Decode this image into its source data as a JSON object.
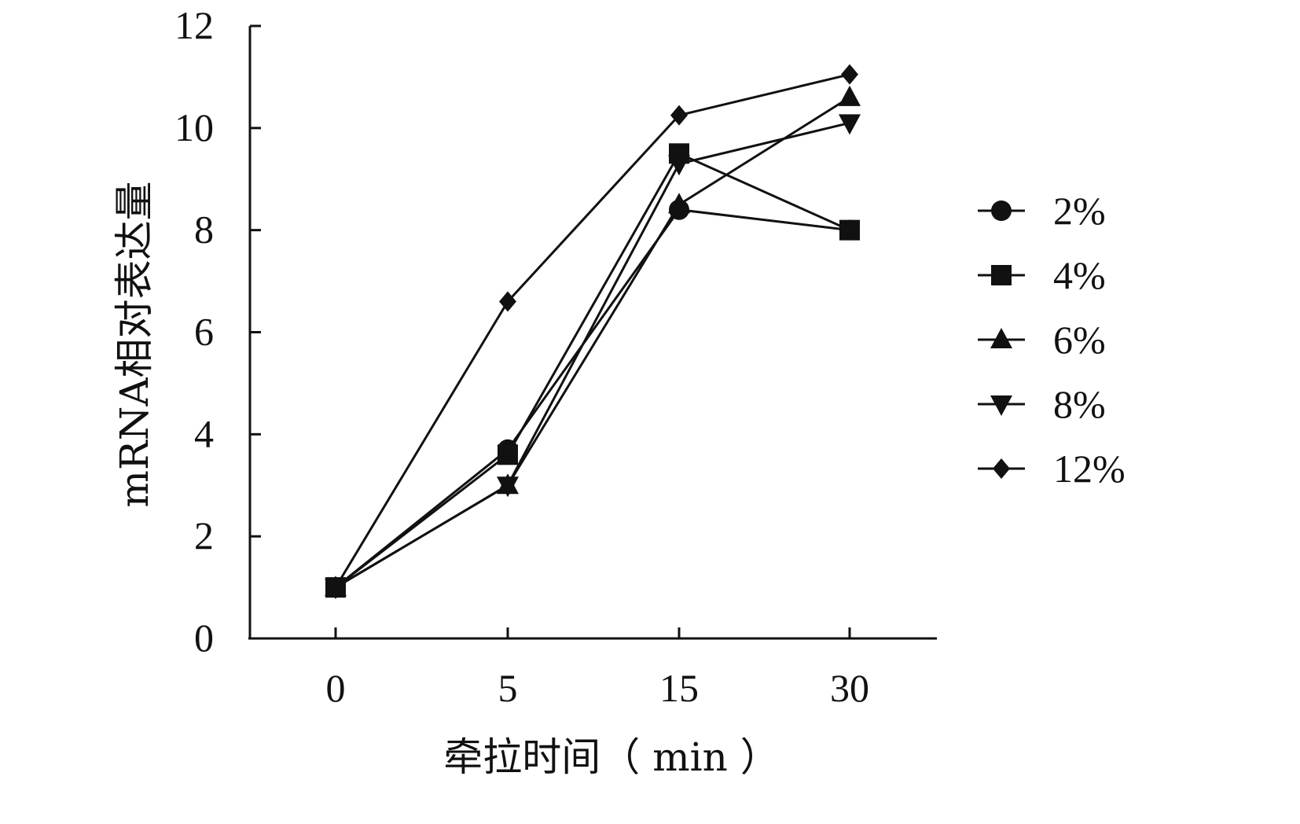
{
  "chart_data": {
    "type": "line",
    "x": [
      "0",
      "5",
      "15",
      "30"
    ],
    "xlabel": "牵拉时间（ min ）",
    "ylabel": "mRNA相对表达量",
    "ylim": [
      0,
      12
    ],
    "yticks": [
      "0",
      "2",
      "4",
      "6",
      "8",
      "10",
      "12"
    ],
    "grid": false,
    "legend_position": "right",
    "series": [
      {
        "name": "2%",
        "marker": "circle",
        "values": [
          1,
          3.7,
          8.4,
          8.0
        ]
      },
      {
        "name": "4%",
        "marker": "square",
        "values": [
          1,
          3.6,
          9.5,
          8.0
        ]
      },
      {
        "name": "6%",
        "marker": "triangle-up",
        "values": [
          1,
          3.0,
          8.5,
          10.6
        ]
      },
      {
        "name": "8%",
        "marker": "triangle-down",
        "values": [
          1,
          3.0,
          9.3,
          10.1
        ]
      },
      {
        "name": "12%",
        "marker": "diamond",
        "values": [
          1,
          6.6,
          10.25,
          11.05
        ]
      }
    ],
    "color": "#111111"
  }
}
